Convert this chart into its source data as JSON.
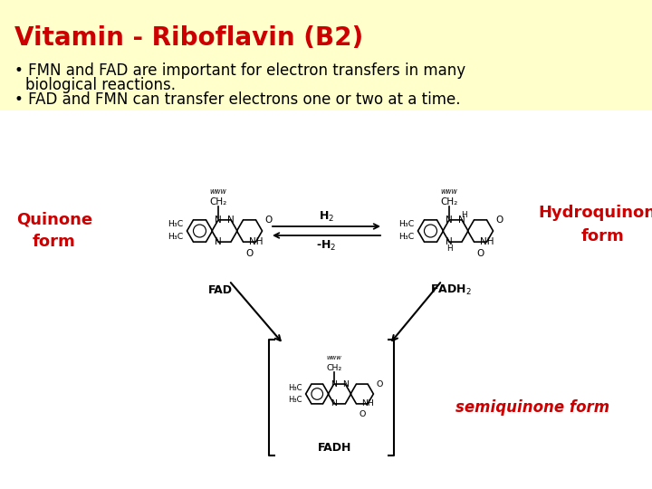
{
  "background_color": "#ffffcc",
  "title": "Vitamin - Riboflavin (B2)",
  "title_color": "#cc0000",
  "title_fontsize": 20,
  "bullet1a": "FMN and FAD are important for electron transfers in many",
  "bullet1b": "biological reactions.",
  "bullet2": "FAD and FMN can transfer electrons one or two at a time.",
  "bullet_fontsize": 12,
  "bullet_color": "#000000",
  "quinone_label": "Quinone\nform",
  "hydroquinone_label": "Hydroquinone\nform",
  "semiquinone_label": "semiquinone form",
  "red_label_color": "#cc0000",
  "fad_label": "FAD",
  "fadh2_label": "FADH",
  "fadh_label": "FADH",
  "arrow_h2": "H",
  "arrow_neg_h2": "-H",
  "content_bg": "#ffffff",
  "lw": 1.2
}
